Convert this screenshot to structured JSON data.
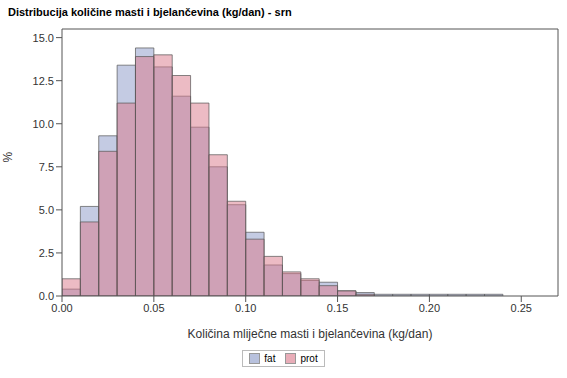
{
  "chart_data": {
    "type": "histogram",
    "title": "Distribucija količine masti i bjelančevina (kg/dan) - srn",
    "x_label": "Količina mliječne masti i bjelančevina (kg/dan)",
    "y_label": "%",
    "bins": [
      0,
      0.01,
      0.02,
      0.03,
      0.04,
      0.05,
      0.06,
      0.07,
      0.08,
      0.09,
      0.1,
      0.11,
      0.12,
      0.13,
      0.14,
      0.15,
      0.16,
      0.17,
      0.18,
      0.19,
      0.2,
      0.21,
      0.22,
      0.23,
      0.24
    ],
    "series": [
      {
        "name": "fat",
        "color": "#8a98c8",
        "values": [
          0.4,
          5.2,
          9.3,
          13.4,
          14.4,
          13.3,
          11.6,
          9.8,
          7.5,
          5.3,
          3.7,
          1.8,
          1.3,
          0.9,
          0.8,
          0.3,
          0.2,
          0.1,
          0.1,
          0.1,
          0.1,
          0.1,
          0.1,
          0.1
        ]
      },
      {
        "name": "prot",
        "color": "#d9788a",
        "values": [
          1.0,
          4.3,
          8.4,
          11.2,
          13.9,
          14.0,
          12.8,
          11.2,
          8.2,
          5.5,
          3.3,
          2.3,
          1.4,
          1.0,
          0.6,
          0.3,
          0.1,
          0,
          0,
          0,
          0,
          0,
          0,
          0
        ]
      }
    ],
    "xlim": [
      0,
      0.27
    ],
    "xticks": [
      {
        "value": 0,
        "label": "0.00"
      },
      {
        "value": 0.05,
        "label": "0.05"
      },
      {
        "value": 0.1,
        "label": "0.10"
      },
      {
        "value": 0.15,
        "label": "0.15"
      },
      {
        "value": 0.2,
        "label": "0.20"
      },
      {
        "value": 0.25,
        "label": "0.25"
      }
    ],
    "ylim": [
      0,
      15.5
    ],
    "yticks": [
      {
        "value": 0,
        "label": "0.0"
      },
      2.5,
      {
        "value": 5,
        "label": "5.0"
      },
      7.5,
      {
        "value": 10,
        "label": "10.0"
      },
      12.5,
      {
        "value": 15,
        "label": "15.0"
      }
    ],
    "legend": "bottom",
    "grid": false
  }
}
